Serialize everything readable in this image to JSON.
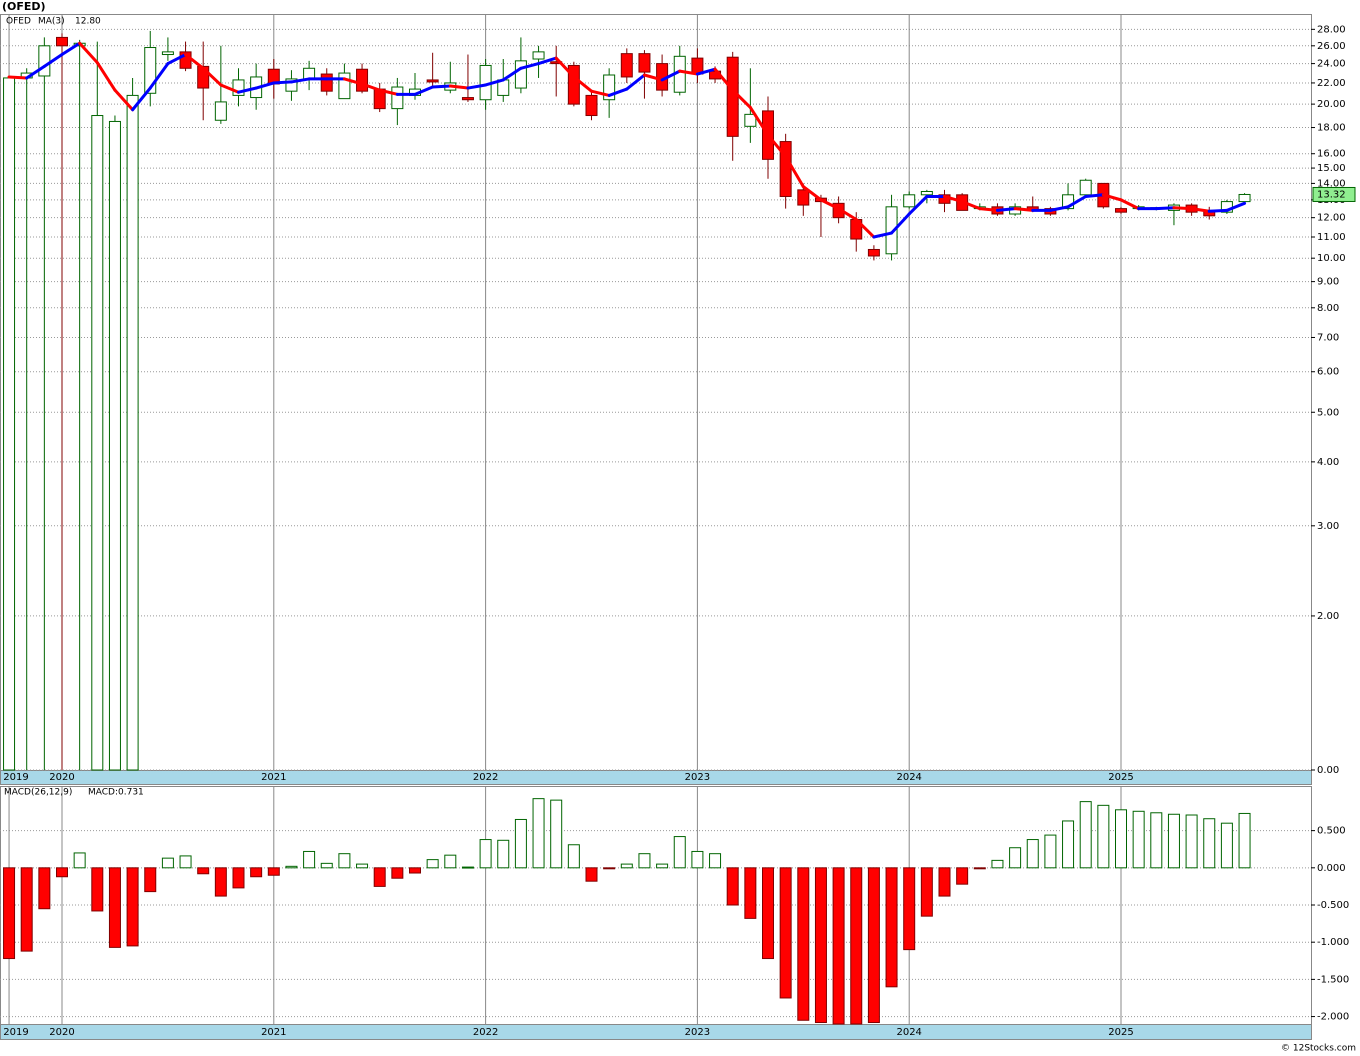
{
  "chart_data": [
    {
      "type": "candlestick",
      "title": "(OFED)",
      "symbol": "OFED",
      "symbol_color": "#006400",
      "categories": [
        "2019",
        null,
        null,
        "2020",
        null,
        null,
        null,
        null,
        null,
        null,
        null,
        null,
        null,
        null,
        null,
        "2021",
        null,
        null,
        null,
        null,
        null,
        null,
        null,
        null,
        null,
        null,
        null,
        "2022",
        null,
        null,
        null,
        null,
        null,
        null,
        null,
        null,
        null,
        null,
        null,
        "2023",
        null,
        null,
        null,
        null,
        null,
        null,
        null,
        null,
        null,
        null,
        null,
        "2024",
        null,
        null,
        null,
        null,
        null,
        null,
        null,
        null,
        null,
        null,
        null,
        "2025",
        null,
        null,
        null,
        null,
        null,
        null,
        null
      ],
      "open": [
        0,
        22.5,
        22.7,
        27,
        26,
        0,
        0,
        0,
        21,
        25,
        25.3,
        23.7,
        18.6,
        20.8,
        20.6,
        23.4,
        21.2,
        22.4,
        22.9,
        20.5,
        23.4,
        21.4,
        19.6,
        20.8,
        22.3,
        21.3,
        20.6,
        20.4,
        20.8,
        21.5,
        24.5,
        24.2,
        23.8,
        20.8,
        20.4,
        25.1,
        25.1,
        24,
        21.1,
        24.6,
        23.2,
        24.7,
        18.1,
        19.4,
        16.9,
        13.6,
        13.1,
        12.8,
        11.9,
        10.4,
        10.2,
        12.6,
        13.3,
        13.3,
        13.3,
        12.5,
        12.6,
        12.2,
        12.6,
        12.5,
        12.5,
        13.3,
        14,
        12.5,
        12.5,
        12.5,
        12.4,
        12.7,
        12.4,
        12.3,
        12.9
      ],
      "high": [
        22.5,
        23.5,
        27,
        27.5,
        26.7,
        26.5,
        19,
        22.5,
        27.8,
        27,
        26.5,
        26.5,
        26,
        23.5,
        24,
        24.5,
        23.3,
        24.3,
        23.5,
        24,
        24,
        22,
        22.5,
        23,
        25.2,
        24.2,
        25,
        24.5,
        24.5,
        27,
        26,
        26,
        24.2,
        21.3,
        23.5,
        25.7,
        25.5,
        25,
        26,
        25.7,
        23.7,
        25.3,
        23.5,
        20.7,
        17.5,
        14,
        13.3,
        13.2,
        12.3,
        10.6,
        13.3,
        13.5,
        13.6,
        13.6,
        13.4,
        12.8,
        12.8,
        12.8,
        13.2,
        12.6,
        14,
        14.3,
        14,
        12.6,
        12.7,
        12.6,
        12.8,
        12.8,
        12.6,
        13,
        13.4
      ],
      "low": [
        0,
        0,
        0,
        0,
        0,
        0,
        0,
        0,
        19.8,
        24.3,
        23.2,
        18.6,
        18.3,
        19.8,
        19.5,
        20.5,
        20.3,
        21.3,
        20.8,
        20.5,
        21,
        19.3,
        18.2,
        20.4,
        21.6,
        21,
        20.2,
        19.5,
        20.2,
        21,
        22.5,
        20.7,
        19.8,
        18.6,
        18.8,
        22,
        20.5,
        20.7,
        20.8,
        22,
        22,
        15.5,
        16.8,
        14.3,
        12.5,
        12.1,
        11,
        11.7,
        10.3,
        9.9,
        9.9,
        12.5,
        12.8,
        12.3,
        12.4,
        12.4,
        12.1,
        12.1,
        12.3,
        12.1,
        12.4,
        13.2,
        12.5,
        12.2,
        12.4,
        12.4,
        11.6,
        12.1,
        11.9,
        12.2,
        12.8
      ],
      "close": [
        22.5,
        23,
        26,
        26,
        26.3,
        19,
        18.5,
        20.8,
        25.8,
        25.3,
        23.5,
        21.5,
        20.2,
        22.3,
        22.6,
        21.9,
        22.4,
        23.5,
        21.2,
        23,
        21.2,
        19.6,
        21.6,
        21.4,
        22.1,
        22,
        20.4,
        23.8,
        22.3,
        24.3,
        25.3,
        24,
        20,
        19,
        22.8,
        22.6,
        23.1,
        21.3,
        24.8,
        22.9,
        22.4,
        17.3,
        19.1,
        15.6,
        13.2,
        12.7,
        12.9,
        12,
        10.9,
        10.1,
        12.6,
        13.3,
        13.5,
        12.8,
        12.4,
        12.6,
        12.2,
        12.6,
        12.4,
        12.2,
        13.3,
        14.2,
        12.6,
        12.3,
        12.6,
        12.55,
        12.7,
        12.3,
        12.1,
        12.9,
        13.32
      ],
      "up_color": "#ffffff",
      "up_stroke": "#006400",
      "down_color": "#ff0000",
      "down_stroke": "#800000",
      "last_label": "13.32",
      "last_label_color": "#90ee90",
      "ma": {
        "name": "MA(3)",
        "last_label": "12.80",
        "up_color": "#0000ff",
        "down_color": "#ff0000",
        "values": [
          22.6,
          22.5,
          23.7,
          25,
          26.3,
          24.1,
          21.3,
          19.5,
          21.5,
          24,
          25,
          23.5,
          21.8,
          21.1,
          21.5,
          22,
          22.1,
          22.4,
          22.4,
          22.4,
          21.9,
          21.3,
          20.9,
          20.9,
          21.6,
          21.7,
          21.5,
          21.8,
          22.3,
          23.5,
          24,
          24.6,
          22.6,
          21.2,
          20.8,
          21.4,
          22.8,
          22.3,
          23.2,
          22.9,
          23.4,
          21.3,
          19.7,
          17.4,
          15.8,
          13.8,
          13,
          12.5,
          11.9,
          11,
          11.2,
          12.2,
          13.2,
          13.2,
          12.9,
          12.5,
          12.4,
          12.5,
          12.4,
          12.4,
          12.6,
          13.2,
          13.3,
          13,
          12.5,
          12.5,
          12.55,
          12.5,
          12.35,
          12.4,
          12.8
        ]
      },
      "log_scale": true,
      "grid": true,
      "ylim": [
        1,
        30
      ],
      "yticks": [
        {
          "value": 28,
          "label": "28.00"
        },
        {
          "value": 26,
          "label": "26.00"
        },
        {
          "value": 24,
          "label": "24.00"
        },
        {
          "value": 22,
          "label": "22.00"
        },
        {
          "value": 20,
          "label": "20.00"
        },
        {
          "value": 18,
          "label": "18.00"
        },
        {
          "value": 16,
          "label": "16.00"
        },
        {
          "value": 15,
          "label": "15.00"
        },
        {
          "value": 14,
          "label": "14.00"
        },
        {
          "value": 13,
          "label": "13.00"
        },
        {
          "value": 12,
          "label": "12.00"
        },
        {
          "value": 11,
          "label": "11.00"
        },
        {
          "value": 10,
          "label": "10.00"
        },
        {
          "value": 9,
          "label": "9.00"
        },
        {
          "value": 8,
          "label": "8.00"
        },
        {
          "value": 7,
          "label": "7.00"
        },
        {
          "value": 6,
          "label": "6.00"
        },
        {
          "value": 5,
          "label": "5.00"
        },
        {
          "value": 4,
          "label": "4.00"
        },
        {
          "value": 3,
          "label": "3.00"
        },
        {
          "value": 2,
          "label": "2.00"
        },
        {
          "value": 0,
          "label": "0.00"
        }
      ]
    },
    {
      "type": "bar",
      "name": "MACD(26,12,9)",
      "last_label": "MACD:0.731",
      "name_color": "#0000ff",
      "categories": [
        "2019",
        null,
        null,
        "2020",
        null,
        null,
        null,
        null,
        null,
        null,
        null,
        null,
        null,
        null,
        null,
        "2021",
        null,
        null,
        null,
        null,
        null,
        null,
        null,
        null,
        null,
        null,
        null,
        "2022",
        null,
        null,
        null,
        null,
        null,
        null,
        null,
        null,
        null,
        null,
        null,
        "2023",
        null,
        null,
        null,
        null,
        null,
        null,
        null,
        null,
        null,
        null,
        null,
        "2024",
        null,
        null,
        null,
        null,
        null,
        null,
        null,
        null,
        null,
        null,
        null,
        "2025",
        null,
        null,
        null,
        null,
        null,
        null,
        null
      ],
      "values": [
        -1.22,
        -1.12,
        -0.55,
        -0.12,
        0.2,
        -0.58,
        -1.07,
        -1.05,
        -0.32,
        0.13,
        0.16,
        -0.08,
        -0.38,
        -0.27,
        -0.12,
        -0.1,
        0.02,
        0.22,
        0.06,
        0.19,
        0.05,
        -0.25,
        -0.14,
        -0.07,
        0.11,
        0.17,
        0.01,
        0.38,
        0.37,
        0.65,
        0.93,
        0.91,
        0.31,
        -0.18,
        -0.01,
        0.05,
        0.19,
        0.05,
        0.42,
        0.22,
        0.19,
        -0.5,
        -0.68,
        -1.22,
        -1.75,
        -2.05,
        -2.08,
        -2.1,
        -2.1,
        -2.08,
        -1.6,
        -1.1,
        -0.65,
        -0.38,
        -0.22,
        -0.01,
        0.1,
        0.27,
        0.38,
        0.44,
        0.63,
        0.89,
        0.84,
        0.78,
        0.76,
        0.74,
        0.72,
        0.71,
        0.66,
        0.6,
        0.731
      ],
      "pos_color": "#ffffff",
      "pos_stroke": "#006400",
      "neg_color": "#ff0000",
      "neg_stroke": "#800000",
      "grid": true,
      "ylim": [
        -2.1,
        1.1
      ],
      "yticks": [
        {
          "value": 0.5,
          "label": "0.500"
        },
        {
          "value": 0,
          "label": "0.000"
        },
        {
          "value": -0.5,
          "label": "-0.500"
        },
        {
          "value": -1,
          "label": "-1.000"
        },
        {
          "value": -1.5,
          "label": "-1.500"
        },
        {
          "value": -2,
          "label": "-2.000"
        }
      ]
    }
  ],
  "footer": "© 12Stocks.com"
}
